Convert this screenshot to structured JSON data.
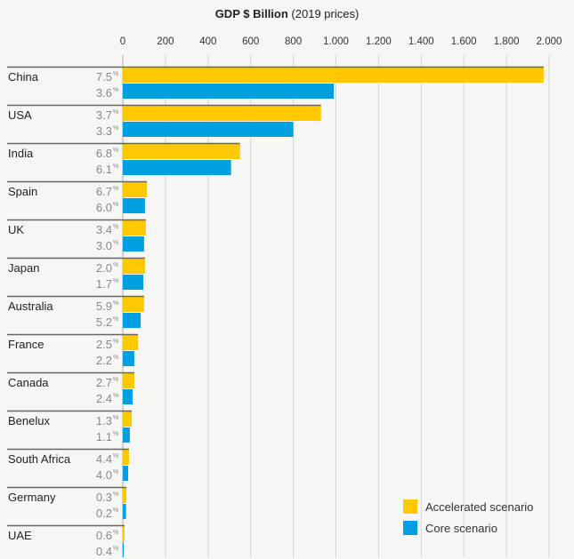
{
  "chart_data": {
    "type": "bar",
    "orientation": "horizontal",
    "title_bold": "GDP $ Billion",
    "title_rest": "(2019 prices)",
    "xlim": [
      0,
      2000
    ],
    "xticks": [
      0,
      200,
      400,
      600,
      800,
      1000,
      1200,
      1400,
      1600,
      1800,
      2000
    ],
    "xtick_labels": [
      "0",
      "200",
      "400",
      "600",
      "800",
      "1.000",
      "1.200",
      "1.400",
      "1.600",
      "1.800",
      "2.000"
    ],
    "grid": true,
    "legend_position": "bottom-right",
    "categories": [
      "China",
      "USA",
      "India",
      "Spain",
      "UK",
      "Japan",
      "Australia",
      "France",
      "Canada",
      "Benelux",
      "South Africa",
      "Germany",
      "UAE"
    ],
    "series": [
      {
        "name": "Accelerated scenario",
        "color": "#FFC800",
        "values": [
          1975,
          930,
          550,
          113,
          108,
          104,
          100,
          71,
          54,
          42,
          29,
          17,
          8
        ],
        "labels": [
          "7.5%",
          "3.7%",
          "6.8%",
          "6.7%",
          "3.4%",
          "2.0%",
          "5.9%",
          "2.5%",
          "2.7%",
          "1.3%",
          "4.4%",
          "0.3%",
          "0.6%"
        ]
      },
      {
        "name": "Core scenario",
        "color": "#00A0E0",
        "values": [
          990,
          800,
          508,
          104,
          100,
          96,
          84,
          54,
          46,
          33,
          25,
          15,
          4
        ],
        "labels": [
          "3.6%",
          "3.3%",
          "6.1%",
          "6.0%",
          "3.0%",
          "1.7%",
          "5.2%",
          "2.2%",
          "2.4%",
          "1.1%",
          "4.0%",
          "0.2%",
          "0.4%"
        ]
      }
    ]
  }
}
